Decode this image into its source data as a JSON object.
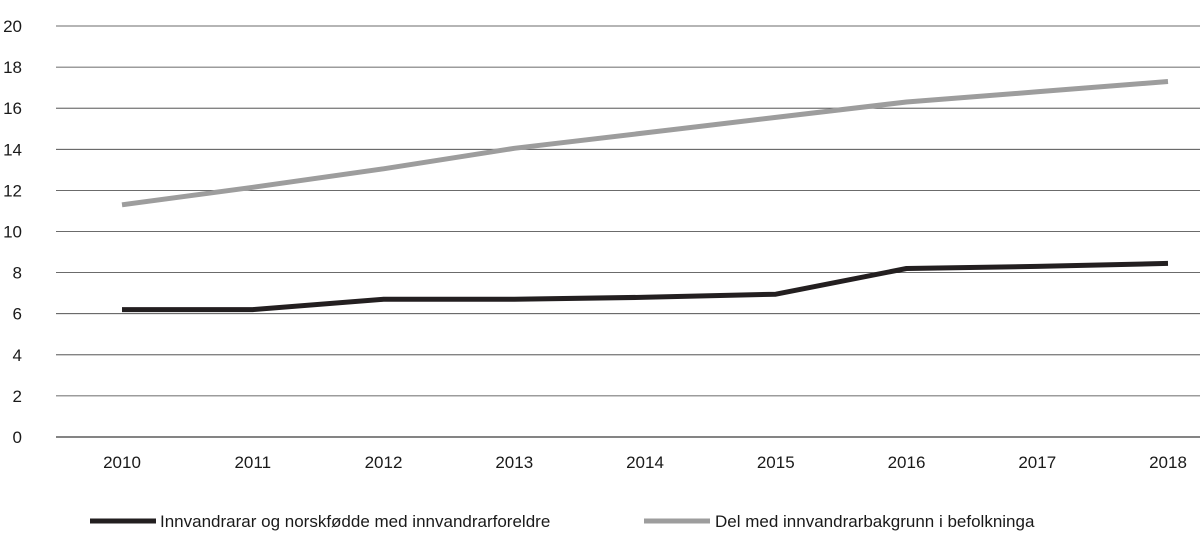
{
  "chart_data": {
    "type": "line",
    "title": "",
    "xlabel": "",
    "ylabel": "",
    "categories": [
      "2010",
      "2011",
      "2012",
      "2013",
      "2014",
      "2015",
      "2016",
      "2017",
      "2018"
    ],
    "yticks": [
      "0",
      "2",
      "4",
      "6",
      "8",
      "10",
      "12",
      "14",
      "16",
      "18",
      "20"
    ],
    "ylim": [
      0,
      20
    ],
    "grid": "horizontal",
    "legend_position": "bottom",
    "series": [
      {
        "name": "Innvandrarar og norskfødde med innvandrarforeldre",
        "color": "#231f20",
        "values": [
          6.2,
          6.2,
          6.7,
          6.7,
          6.8,
          6.95,
          8.2,
          8.3,
          8.45
        ]
      },
      {
        "name": "Del med innvandrarbakgrunn i befolkninga",
        "color": "#9d9d9d",
        "values": [
          11.3,
          12.15,
          13.05,
          14.05,
          14.8,
          15.55,
          16.3,
          16.8,
          17.3
        ]
      }
    ]
  }
}
